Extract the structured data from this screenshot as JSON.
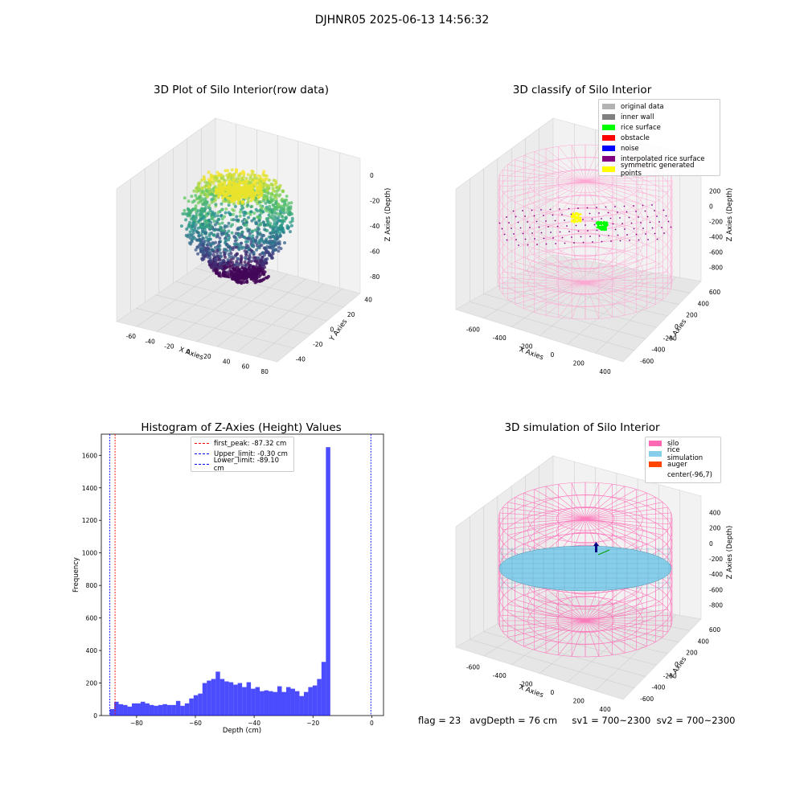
{
  "suptitle": "DJHNR05 2025-06-13 14:56:32",
  "footer": "flag = 23   avgDepth = 76 cm     sv1 = 700~2300  sv2 = 700~2300",
  "colors": {
    "silo": "#ff69b4",
    "rice_simulation": "#87ceeb",
    "auger": "#ff4500",
    "hist_bar": "#0000ff",
    "hist_bar_alpha": 0.7,
    "original_data": "#b3b3b3",
    "inner_wall": "#808080",
    "rice_surface": "#00ff00",
    "obstacle": "#ff0000",
    "noise": "#0000ff",
    "interpolated": "#800080",
    "symmetric": "#ffff00"
  },
  "chart_data": [
    {
      "type": "scatter",
      "subtype": "3d",
      "title": "3D Plot of Silo Interior(row data)",
      "xlabel": "X Axies",
      "ylabel": "Y Axies",
      "zlabel": "Z Axies (Depth)",
      "x_ticks": [
        "-60",
        "-40",
        "-20",
        "0",
        "20",
        "40",
        "60",
        "80"
      ],
      "y_ticks": [
        "-40",
        "-20",
        "0",
        "20",
        "40"
      ],
      "z_ticks": [
        "0",
        "-20",
        "-40",
        "-60",
        "-80"
      ],
      "xlim": [
        -70,
        85
      ],
      "ylim": [
        -45,
        45
      ],
      "zlim": [
        -95,
        0
      ],
      "colormap": "viridis"
    },
    {
      "type": "scatter",
      "subtype": "3d",
      "title": "3D classify of Silo Interior",
      "xlabel": "X Axies",
      "ylabel": "Y Axies",
      "zlabel": "Z Axies (Depth)",
      "x_ticks": [
        "-600",
        "-400",
        "-200",
        "0",
        "200",
        "400"
      ],
      "y_ticks": [
        "-600",
        "-400",
        "-200",
        "0",
        "200",
        "400",
        "600"
      ],
      "z_ticks": [
        "200",
        "0",
        "-200",
        "-400",
        "-600",
        "-800"
      ],
      "legend": [
        "original data",
        "inner wall",
        "rice surface",
        "obstacle",
        "noise",
        "interpolated rice surface",
        "symmetric generated points"
      ],
      "legend_loc": "upper right"
    },
    {
      "type": "bar",
      "subtype": "histogram",
      "title": "Histogram of Z-Axies (Height) Values",
      "xlabel": "Depth (cm)",
      "ylabel": "Frequency",
      "xlim": [
        -92,
        4
      ],
      "ylim": [
        0,
        1730
      ],
      "x_ticks": [
        -80,
        -60,
        -40,
        -20,
        0
      ],
      "y_ticks": [
        0,
        200,
        400,
        600,
        800,
        1000,
        1200,
        1400,
        1600
      ],
      "bin_start": -89.1,
      "bin_width": 1.5,
      "values": [
        40,
        85,
        70,
        65,
        55,
        75,
        75,
        85,
        75,
        65,
        60,
        65,
        70,
        65,
        65,
        90,
        60,
        75,
        105,
        125,
        135,
        200,
        215,
        225,
        270,
        225,
        210,
        205,
        190,
        200,
        175,
        205,
        165,
        175,
        150,
        155,
        150,
        145,
        180,
        145,
        175,
        165,
        150,
        120,
        145,
        175,
        185,
        225,
        330,
        1650
      ],
      "vlines": [
        {
          "x": -87.32,
          "color": "#ff0000",
          "label": "first_peak: -87.32 cm"
        },
        {
          "x": -0.3,
          "color": "#0000ff",
          "label": "Upper_limit: -0.30 cm"
        },
        {
          "x": -89.1,
          "color": "#0000ff",
          "label": "Lower_limit: -89.10 cm"
        }
      ],
      "legend_loc": "upper center"
    },
    {
      "type": "scatter",
      "subtype": "3d-surface",
      "title": "3D simulation of Silo Interior",
      "xlabel": "X Axies",
      "ylabel": "Y Axies",
      "zlabel": "Z Axies (Depth)",
      "x_ticks": [
        "-600",
        "-400",
        "-200",
        "0",
        "200",
        "400"
      ],
      "y_ticks": [
        "-600",
        "-400",
        "-200",
        "0",
        "200",
        "400",
        "600"
      ],
      "z_ticks": [
        "400",
        "200",
        "0",
        "-200",
        "-400",
        "-600",
        "-800"
      ],
      "legend": [
        "silo",
        "rice simulation",
        "auger",
        "center(-96,7)"
      ],
      "legend_loc": "upper right"
    }
  ]
}
